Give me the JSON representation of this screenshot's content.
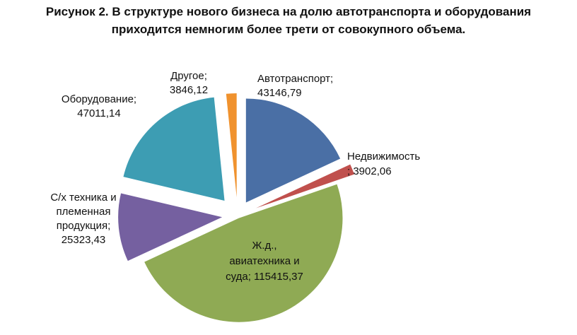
{
  "title": {
    "line1": "Рисунок 2. В структуре нового бизнеса на долю автотранспорта и оборудования",
    "line2": "приходится немногим более трети от совокупного объема."
  },
  "chart_data": {
    "type": "pie",
    "slices": [
      {
        "name": "Автотранспорт",
        "value": 43146.79,
        "value_label": "43146,79",
        "color": "#4a6fa5",
        "label_lines": [
          "Автотранспорт;",
          "43146,79"
        ]
      },
      {
        "name": "Недвижимость",
        "value": 3902.06,
        "value_label": "3902,06",
        "color": "#c0504d",
        "label_lines": [
          "Недвижимость",
          "; 3902,06"
        ]
      },
      {
        "name": "Ж.д., авиатехника и суда",
        "value": 115415.37,
        "value_label": "115415,37",
        "color": "#8faa54",
        "label_lines": [
          "Ж.д.,",
          "авиатехника и",
          "суда; 115415,37"
        ]
      },
      {
        "name": "С/х техника и племенная продукция",
        "value": 25323.43,
        "value_label": "25323,43",
        "color": "#7560a0",
        "label_lines": [
          "С/х техника и",
          "племенная",
          "продукция;",
          "25323,43"
        ]
      },
      {
        "name": "Оборудование",
        "value": 47011.14,
        "value_label": "47011,14",
        "color": "#3d9db3",
        "label_lines": [
          "Оборудование;",
          "47011,14"
        ]
      },
      {
        "name": "Другое",
        "value": 3846.12,
        "value_label": "3846,12",
        "color": "#f0922e",
        "label_lines": [
          "Другое;",
          "3846,12"
        ]
      }
    ]
  }
}
